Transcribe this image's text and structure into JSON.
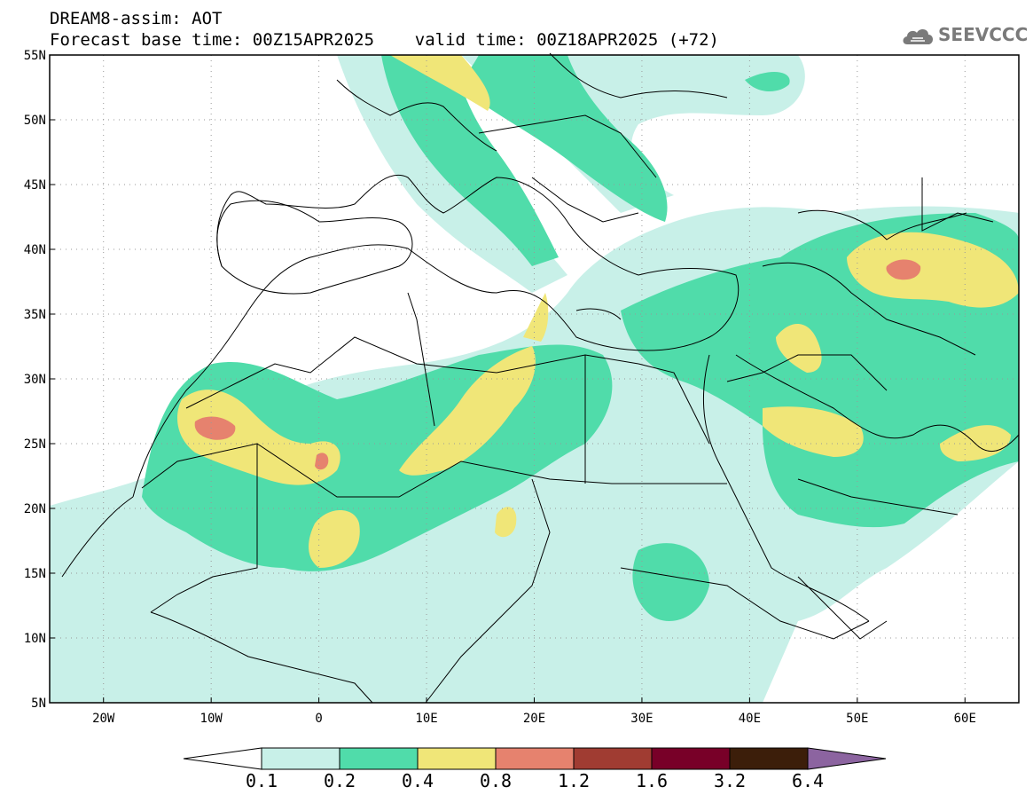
{
  "header": {
    "title": "DREAM8-assim: AOT",
    "subtitle": "Forecast base time: 00Z15APR2025    valid time: 00Z18APR2025 (+72)"
  },
  "logo": {
    "text": "SEEVCCC",
    "icon": "cloud-icon"
  },
  "map": {
    "lat_range": [
      5,
      55
    ],
    "lon_range": [
      -25,
      65
    ],
    "lat_labels": [
      "55N",
      "50N",
      "45N",
      "40N",
      "35N",
      "30N",
      "25N",
      "20N",
      "15N",
      "10N",
      "5N"
    ],
    "lon_labels": [
      "20W",
      "10W",
      "0",
      "10E",
      "20E",
      "30E",
      "40E",
      "50E",
      "60E"
    ],
    "gridlines": true
  },
  "colorbar": {
    "labels": [
      "0.1",
      "0.2",
      "0.4",
      "0.8",
      "1.2",
      "1.6",
      "3.2",
      "6.4"
    ],
    "colors": [
      "#c8f0e8",
      "#50dcaa",
      "#f0e678",
      "#e6826e",
      "#a03c32",
      "#780028",
      "#3c1e0a",
      "#8c64a0"
    ],
    "under_color": "#ffffff"
  }
}
